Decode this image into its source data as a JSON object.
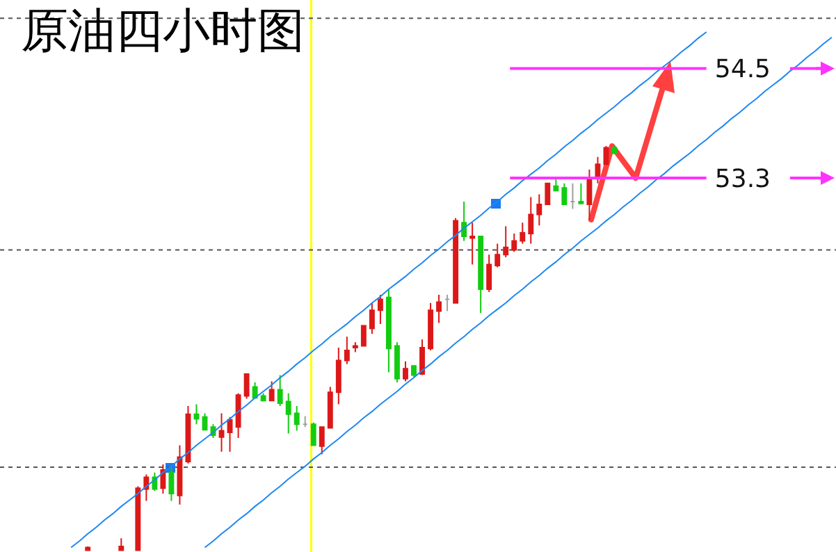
{
  "chart_data": {
    "type": "candlestick",
    "title": "原油四小时图",
    "categories": [
      null,
      null,
      null,
      null,
      null,
      null,
      null,
      null,
      null,
      null,
      null,
      null,
      null,
      null,
      null,
      null,
      null,
      null,
      null,
      null,
      null,
      null,
      null,
      null,
      null,
      null,
      null,
      null,
      null,
      null,
      null,
      null,
      null,
      null,
      null,
      null,
      null,
      null,
      null,
      null,
      null,
      null,
      null,
      null,
      null,
      null,
      null,
      null,
      null,
      null,
      null,
      null,
      null,
      null,
      null,
      null,
      null,
      null,
      null,
      null,
      null,
      null,
      null,
      null,
      null,
      null,
      null,
      null,
      null,
      null,
      null,
      null,
      null,
      null,
      null,
      null,
      null,
      null,
      null,
      null,
      null,
      null,
      null,
      null,
      null,
      null,
      null,
      null,
      null,
      null,
      null,
      null,
      null,
      null,
      null,
      null,
      null,
      null,
      null,
      null
    ],
    "ohlc": [
      null,
      null,
      null,
      null,
      null,
      null,
      null,
      null,
      null,
      null,
      [
        49.22,
        49.26,
        49.22,
        49.25
      ],
      null,
      null,
      null,
      [
        49.22,
        49.35,
        49.22,
        49.26
      ],
      null,
      [
        49.22,
        49.92,
        49.22,
        49.9
      ],
      [
        49.89,
        50.05,
        49.76,
        50.02
      ],
      [
        50.02,
        50.07,
        49.87,
        49.89
      ],
      [
        49.9,
        50.16,
        49.84,
        50.1
      ],
      [
        50.07,
        50.13,
        49.76,
        49.84
      ],
      [
        49.82,
        50.37,
        49.72,
        50.24
      ],
      [
        50.19,
        50.8,
        50.17,
        50.71
      ],
      [
        50.71,
        50.82,
        50.6,
        50.66
      ],
      [
        50.68,
        50.72,
        50.54,
        50.54
      ],
      [
        50.57,
        50.6,
        50.45,
        50.48
      ],
      [
        50.46,
        50.72,
        50.3,
        50.53
      ],
      [
        50.51,
        50.68,
        50.3,
        50.65
      ],
      [
        50.57,
        50.94,
        50.45,
        50.92
      ],
      [
        50.91,
        51.15,
        50.88,
        51.15
      ],
      [
        51.01,
        51.06,
        50.88,
        50.89
      ],
      [
        50.91,
        50.94,
        50.85,
        50.86
      ],
      [
        50.86,
        51.07,
        50.86,
        50.98
      ],
      [
        50.98,
        51.14,
        50.8,
        50.83
      ],
      [
        50.85,
        50.94,
        50.5,
        50.71
      ],
      [
        50.72,
        50.8,
        50.53,
        50.6
      ],
      [
        50.6,
        50.69,
        50.57,
        50.6
      ],
      [
        50.6,
        50.62,
        50.37,
        50.37
      ],
      [
        50.36,
        50.57,
        50.27,
        50.57
      ],
      [
        50.56,
        51.01,
        50.56,
        50.95
      ],
      [
        50.95,
        51.44,
        50.82,
        51.3
      ],
      [
        51.3,
        51.56,
        51.26,
        51.41
      ],
      [
        51.44,
        51.5,
        51.39,
        51.46
      ],
      [
        51.46,
        51.68,
        51.46,
        51.68
      ],
      [
        51.65,
        51.93,
        51.59,
        51.85
      ],
      [
        51.85,
        52.02,
        51.7,
        51.97
      ],
      [
        51.99,
        52.08,
        51.17,
        51.43
      ],
      [
        51.46,
        51.5,
        51.06,
        51.1
      ],
      [
        51.1,
        51.29,
        51.07,
        51.21
      ],
      [
        51.24,
        51.24,
        51.12,
        51.14
      ],
      [
        51.15,
        51.53,
        51.14,
        51.44
      ],
      [
        51.43,
        51.93,
        51.41,
        51.85
      ],
      [
        51.84,
        52.02,
        51.71,
        51.94
      ],
      [
        51.97,
        52.02,
        51.84,
        51.97
      ],
      [
        51.93,
        52.86,
        51.93,
        52.83
      ],
      [
        52.81,
        53.04,
        52.61,
        52.66
      ],
      [
        52.64,
        52.81,
        52.35,
        52.66
      ],
      [
        52.66,
        52.66,
        51.82,
        52.08
      ],
      [
        52.08,
        52.46,
        52.05,
        52.35
      ],
      [
        52.34,
        52.58,
        52.32,
        52.46
      ],
      [
        52.46,
        52.77,
        52.43,
        52.54
      ],
      [
        52.51,
        52.69,
        52.49,
        52.61
      ],
      [
        52.61,
        52.81,
        52.58,
        52.7
      ],
      [
        52.69,
        53.09,
        52.58,
        52.9
      ],
      [
        52.9,
        53.12,
        52.78,
        53.01
      ],
      [
        53.01,
        53.24,
        53.01,
        53.24
      ],
      [
        53.21,
        53.3,
        53.16,
        53.16
      ],
      [
        53.19,
        53.24,
        53.01,
        53.01
      ],
      [
        53.04,
        53.24,
        52.96,
        53.04
      ],
      [
        53.04,
        53.24,
        53.01,
        53.02
      ],
      [
        53.01,
        53.39,
        52.84,
        53.3
      ],
      [
        53.3,
        53.53,
        53.24,
        53.45
      ],
      [
        53.45,
        53.65,
        53.45,
        53.63
      ],
      [
        53.63,
        53.66,
        53.56,
        53.57
      ],
      null,
      null,
      null,
      null,
      null,
      null,
      null,
      null,
      null,
      null,
      null,
      null,
      null,
      null,
      null,
      null,
      null,
      null,
      null,
      null,
      null,
      null,
      null,
      null,
      null,
      null
    ],
    "colors": [
      null,
      null,
      null,
      null,
      null,
      null,
      null,
      null,
      null,
      null,
      "#dc1818",
      null,
      null,
      null,
      "#dc1818",
      null,
      "#dc1818",
      "#dc1818",
      "#12cc12",
      "#dc1818",
      "#12cc12",
      "#dc1818",
      "#dc1818",
      "#12cc12",
      "#12cc12",
      "#12cc12",
      "#dc1818",
      "#dc1818",
      "#dc1818",
      "#dc1818",
      "#12cc12",
      "#12cc12",
      "#dc1818",
      "#12cc12",
      "#12cc12",
      "#12cc12",
      "#a0a0a0",
      "#12cc12",
      "#dc1818",
      "#dc1818",
      "#dc1818",
      "#dc1818",
      "#dc1818",
      "#dc1818",
      "#dc1818",
      "#dc1818",
      "#12cc12",
      "#12cc12",
      "#dc1818",
      "#12cc12",
      "#dc1818",
      "#dc1818",
      "#dc1818",
      "#a0a0a0",
      "#dc1818",
      "#12cc12",
      "#dc1818",
      "#12cc12",
      "#dc1818",
      "#dc1818",
      "#dc1818",
      "#dc1818",
      "#dc1818",
      "#dc1818",
      "#dc1818",
      "#dc1818",
      "#12cc12",
      "#12cc12",
      "#a0a0a0",
      "#12cc12",
      "#dc1818",
      "#dc1818",
      "#dc1818",
      "#12cc12",
      null,
      null,
      null,
      null,
      null,
      null,
      null,
      null,
      null,
      null,
      null,
      null,
      null,
      null,
      null,
      null,
      null,
      null,
      null,
      null,
      null,
      null,
      null,
      null,
      null,
      null
    ],
    "series": [
      {
        "type": "line",
        "color": "#1e88f0",
        "values": [
          null,
          null,
          null,
          null,
          null,
          null,
          null,
          null,
          49.25,
          49.32,
          49.4,
          49.47,
          49.55,
          49.62,
          49.7,
          49.77,
          49.84,
          49.92,
          49.99,
          50.07,
          50.14,
          50.22,
          50.29,
          50.37,
          50.44,
          50.51,
          50.59,
          50.66,
          50.74,
          50.81,
          50.89,
          50.96,
          51.03,
          51.11,
          51.18,
          51.26,
          51.33,
          51.41,
          51.48,
          51.56,
          51.63,
          51.7,
          51.78,
          51.85,
          51.93,
          52.0,
          52.08,
          52.15,
          52.22,
          52.3,
          52.37,
          52.45,
          52.52,
          52.6,
          52.67,
          52.75,
          52.82,
          52.89,
          52.97,
          53.04,
          53.12,
          53.19,
          53.27,
          53.34,
          53.41,
          53.49,
          53.56,
          53.64,
          53.71,
          53.79,
          53.86,
          53.94,
          54.01,
          54.08,
          54.16,
          54.23,
          54.31,
          54.38,
          54.46,
          54.53,
          54.6,
          54.68,
          54.75,
          54.83,
          54.9,
          null,
          null,
          null,
          null,
          null,
          null,
          null,
          null,
          null,
          null,
          null,
          null,
          null,
          null,
          null
        ]
      },
      {
        "type": "line",
        "color": "#1e88f0",
        "values": [
          null,
          null,
          null,
          null,
          null,
          null,
          null,
          null,
          null,
          null,
          null,
          null,
          null,
          null,
          null,
          null,
          null,
          null,
          null,
          null,
          null,
          null,
          null,
          null,
          49.25,
          49.32,
          49.4,
          49.47,
          49.55,
          49.62,
          49.7,
          49.77,
          49.85,
          49.92,
          50.0,
          50.07,
          50.14,
          50.22,
          50.29,
          50.37,
          50.44,
          50.52,
          50.59,
          50.67,
          50.74,
          50.82,
          50.89,
          50.96,
          51.04,
          51.11,
          51.19,
          51.26,
          51.34,
          51.41,
          51.49,
          51.56,
          51.64,
          51.71,
          51.79,
          51.86,
          51.93,
          52.01,
          52.08,
          52.16,
          52.23,
          52.31,
          52.38,
          52.46,
          52.53,
          52.61,
          52.68,
          52.75,
          52.83,
          52.9,
          52.98,
          53.05,
          53.13,
          53.2,
          53.28,
          53.35,
          53.43,
          53.5,
          53.57,
          53.65,
          53.72,
          53.8,
          53.87,
          53.95,
          54.02,
          54.1,
          54.17,
          54.25,
          54.32,
          54.39,
          54.47,
          54.54,
          54.62,
          54.69,
          54.77,
          54.84
        ]
      }
    ],
    "ylim": [
      49.2,
      55.25
    ],
    "yticks": [
      {
        "value": 50.13,
        "label": null
      },
      {
        "value": 52.51,
        "label": null
      },
      53.3,
      54.5,
      {
        "value": 55.05,
        "label": null
      }
    ],
    "grid": "y",
    "tick_labels": "y",
    "ref_lines": [
      {
        "axis": "y",
        "value": 54.5,
        "color": "#ff33ff"
      },
      {
        "axis": "y",
        "value": 53.3,
        "color": "#ff33ff"
      }
    ]
  }
}
